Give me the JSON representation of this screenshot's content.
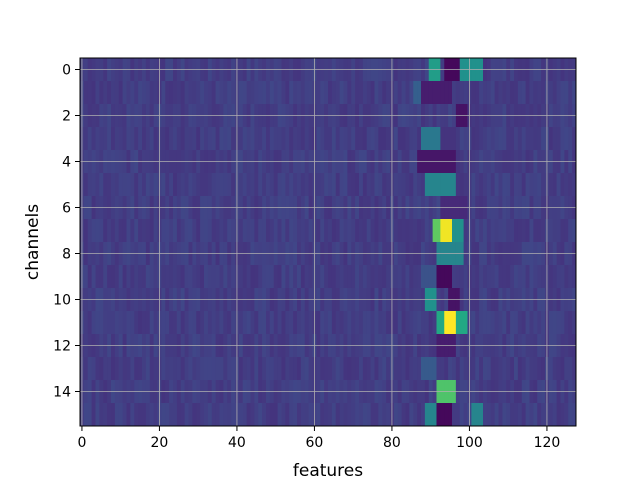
{
  "chart_data": {
    "type": "heatmap",
    "title": "",
    "xlabel": "features",
    "ylabel": "channels",
    "x_range": [
      -0.5,
      127.5
    ],
    "y_range": [
      -0.5,
      15.5
    ],
    "y_inverted": true,
    "x_ticks": [
      0,
      20,
      40,
      60,
      80,
      100,
      120
    ],
    "y_ticks": [
      0,
      2,
      4,
      6,
      8,
      10,
      12,
      14
    ],
    "grid": true,
    "colormap": "viridis",
    "value_range": [
      0,
      1
    ],
    "n_rows": 16,
    "n_cols": 128,
    "background_level": 0.18,
    "hotspots": [
      {
        "row": 0,
        "cols": [
          90,
          92
        ],
        "value": 0.55
      },
      {
        "row": 0,
        "cols": [
          98,
          103
        ],
        "value": 0.5
      },
      {
        "row": 0,
        "cols": [
          94,
          97
        ],
        "value": 0.02
      },
      {
        "row": 1,
        "cols": [
          86,
          88
        ],
        "value": 0.3
      },
      {
        "row": 1,
        "cols": [
          88,
          95
        ],
        "value": 0.08
      },
      {
        "row": 2,
        "cols": [
          97,
          99
        ],
        "value": 0.05
      },
      {
        "row": 3,
        "cols": [
          88,
          92
        ],
        "value": 0.4
      },
      {
        "row": 3,
        "cols": [
          93,
          96
        ],
        "value": 0.15
      },
      {
        "row": 4,
        "cols": [
          87,
          96
        ],
        "value": 0.06
      },
      {
        "row": 5,
        "cols": [
          89,
          96
        ],
        "value": 0.45
      },
      {
        "row": 6,
        "cols": [
          93,
          99
        ],
        "value": 0.12
      },
      {
        "row": 7,
        "cols": [
          91,
          93
        ],
        "value": 0.75
      },
      {
        "row": 7,
        "cols": [
          93,
          96
        ],
        "value": 0.98
      },
      {
        "row": 7,
        "cols": [
          96,
          98
        ],
        "value": 0.5
      },
      {
        "row": 8,
        "cols": [
          92,
          98
        ],
        "value": 0.45
      },
      {
        "row": 9,
        "cols": [
          92,
          95
        ],
        "value": 0.02
      },
      {
        "row": 9,
        "cols": [
          88,
          91
        ],
        "value": 0.25
      },
      {
        "row": 10,
        "cols": [
          89,
          91
        ],
        "value": 0.5
      },
      {
        "row": 10,
        "cols": [
          95,
          97
        ],
        "value": 0.05
      },
      {
        "row": 11,
        "cols": [
          92,
          94
        ],
        "value": 0.6
      },
      {
        "row": 11,
        "cols": [
          94,
          97
        ],
        "value": 1.0
      },
      {
        "row": 11,
        "cols": [
          97,
          99
        ],
        "value": 0.6
      },
      {
        "row": 12,
        "cols": [
          92,
          96
        ],
        "value": 0.08
      },
      {
        "row": 13,
        "cols": [
          88,
          91
        ],
        "value": 0.28
      },
      {
        "row": 14,
        "cols": [
          92,
          96
        ],
        "value": 0.72
      },
      {
        "row": 15,
        "cols": [
          89,
          92
        ],
        "value": 0.45
      },
      {
        "row": 15,
        "cols": [
          92,
          95
        ],
        "value": 0.02
      },
      {
        "row": 15,
        "cols": [
          101,
          103
        ],
        "value": 0.45
      }
    ]
  }
}
